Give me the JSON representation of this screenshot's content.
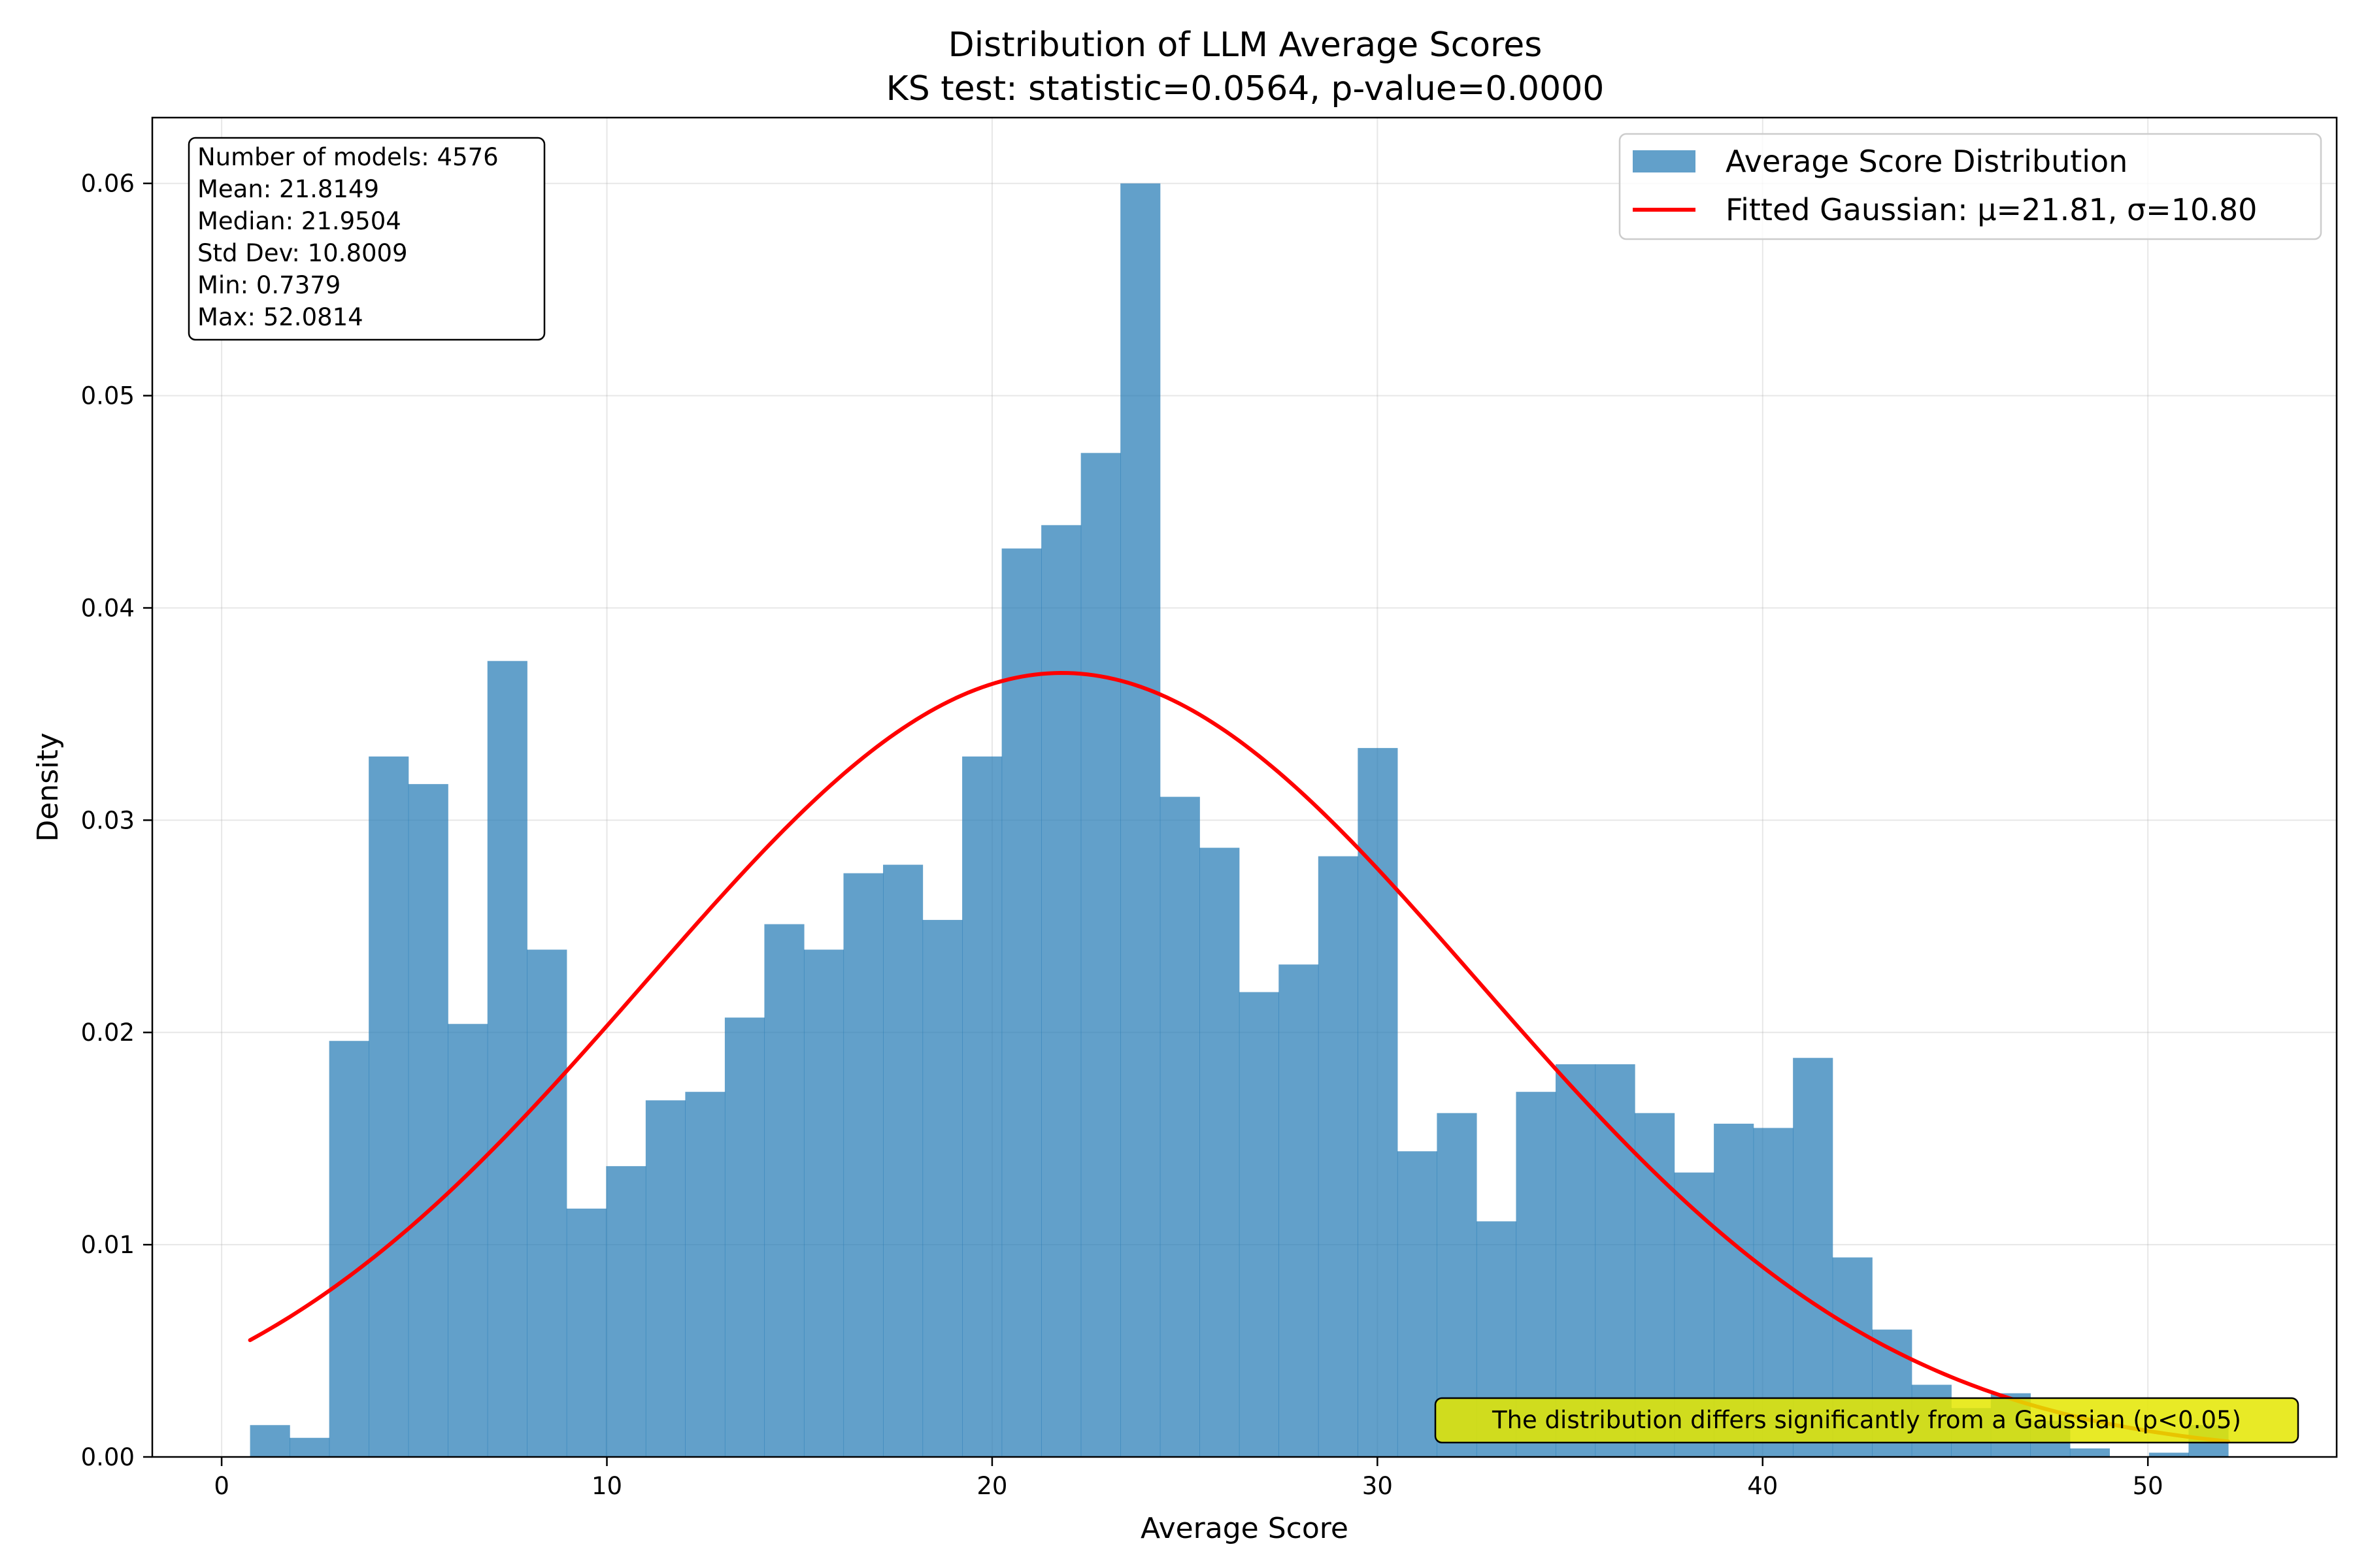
{
  "chart_data": {
    "type": "bar",
    "title_line1": "Distribution of LLM Average Scores",
    "title_line2": "KS test: statistic=0.0564, p-value=0.0000",
    "xlabel": "Average Score",
    "ylabel": "Density",
    "xlim": [
      -1.8,
      54.9
    ],
    "ylim": [
      0,
      0.0631
    ],
    "xticks": [
      0,
      10,
      20,
      30,
      40,
      50
    ],
    "xtick_labels": [
      "0",
      "10",
      "20",
      "30",
      "40",
      "50"
    ],
    "yticks": [
      0,
      0.01,
      0.02,
      0.03,
      0.04,
      0.05,
      0.06
    ],
    "ytick_labels": [
      "0.00",
      "0.01",
      "0.02",
      "0.03",
      "0.04",
      "0.05",
      "0.06"
    ],
    "grid": true,
    "bin_start": 0.7379,
    "bin_width": 1.0269,
    "densities": [
      0.0015,
      0.0009,
      0.0196,
      0.033,
      0.0317,
      0.0204,
      0.0375,
      0.0239,
      0.0117,
      0.0137,
      0.0168,
      0.0172,
      0.0207,
      0.0251,
      0.0239,
      0.0275,
      0.0279,
      0.0253,
      0.033,
      0.0428,
      0.0439,
      0.0473,
      0.06,
      0.0311,
      0.0287,
      0.0219,
      0.0232,
      0.0283,
      0.0334,
      0.0144,
      0.0162,
      0.0111,
      0.0172,
      0.0185,
      0.0185,
      0.0162,
      0.0134,
      0.0157,
      0.0155,
      0.0188,
      0.0094,
      0.006,
      0.0034,
      0.0023,
      0.003,
      0.0017,
      0.0004,
      0.0,
      0.0002,
      0.0015
    ],
    "bar_color": "#1f77b4",
    "bar_alpha": 0.7,
    "gaussian": {
      "mu": 21.8149,
      "sigma": 10.8009,
      "color": "#ff0000"
    },
    "legend": {
      "position": "upper right",
      "histogram_label": "Average Score Distribution",
      "gaussian_label": "Fitted Gaussian: μ=21.81, σ=10.80"
    },
    "stats_box": [
      "Number of models: 4576",
      "Mean: 21.8149",
      "Median: 21.9504",
      "Std Dev: 10.8009",
      "Min: 0.7379",
      "Max: 52.0814"
    ],
    "note": {
      "text": "The distribution differs significantly from a Gaussian (p<0.05)",
      "background": "#e4e600"
    }
  }
}
